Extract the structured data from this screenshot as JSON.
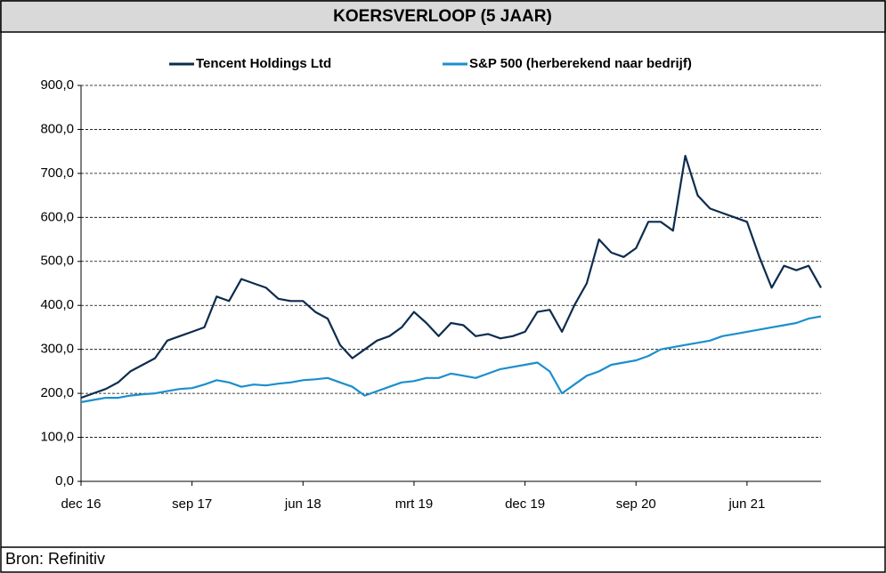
{
  "chart_data": {
    "type": "line",
    "title": "KOERSVERLOOP (5 JAAR)",
    "source": "Bron: Refinitiv",
    "categories": [
      "dec 16",
      null,
      null,
      null,
      null,
      null,
      null,
      null,
      null,
      "sep 17",
      null,
      null,
      null,
      null,
      null,
      null,
      null,
      null,
      "jun 18",
      null,
      null,
      null,
      null,
      null,
      null,
      null,
      null,
      "mrt 19",
      null,
      null,
      null,
      null,
      null,
      null,
      null,
      null,
      "dec 19",
      null,
      null,
      null,
      null,
      null,
      null,
      null,
      null,
      "sep 20",
      null,
      null,
      null,
      null,
      null,
      null,
      null,
      null,
      "jun 21",
      null,
      null,
      null,
      null,
      null,
      null
    ],
    "series": [
      {
        "name": "Tencent Holdings Ltd",
        "color": "#0d2c4e",
        "values": [
          190,
          200,
          210,
          225,
          250,
          265,
          280,
          320,
          330,
          340,
          350,
          420,
          410,
          460,
          450,
          440,
          415,
          410,
          410,
          385,
          370,
          310,
          280,
          300,
          320,
          330,
          350,
          385,
          360,
          330,
          360,
          355,
          330,
          335,
          325,
          330,
          340,
          385,
          390,
          340,
          400,
          450,
          550,
          520,
          510,
          530,
          590,
          590,
          570,
          740,
          650,
          620,
          610,
          600,
          590,
          510,
          440,
          490,
          480,
          490,
          440
        ]
      },
      {
        "name": "S&P 500 (herberekend naar bedrijf)",
        "color": "#1b8fcc",
        "values": [
          180,
          185,
          190,
          190,
          195,
          198,
          200,
          205,
          210,
          212,
          220,
          230,
          225,
          215,
          220,
          218,
          222,
          225,
          230,
          232,
          235,
          225,
          215,
          195,
          205,
          215,
          225,
          228,
          235,
          235,
          245,
          240,
          235,
          245,
          255,
          260,
          265,
          270,
          250,
          200,
          220,
          240,
          250,
          265,
          270,
          275,
          285,
          300,
          305,
          310,
          315,
          320,
          330,
          335,
          340,
          345,
          350,
          355,
          360,
          370,
          375
        ]
      }
    ],
    "ylim": [
      0,
      900
    ],
    "yticks": [
      {
        "value": 0,
        "label": "0,0"
      },
      {
        "value": 100,
        "label": "100,0"
      },
      {
        "value": 200,
        "label": "200,0"
      },
      {
        "value": 300,
        "label": "300,0"
      },
      {
        "value": 400,
        "label": "400,0"
      },
      {
        "value": 500,
        "label": "500,0"
      },
      {
        "value": 600,
        "label": "600,0"
      },
      {
        "value": 700,
        "label": "700,0"
      },
      {
        "value": 800,
        "label": "800,0"
      },
      {
        "value": 900,
        "label": "900,0"
      }
    ],
    "grid": true,
    "legend": "top"
  }
}
